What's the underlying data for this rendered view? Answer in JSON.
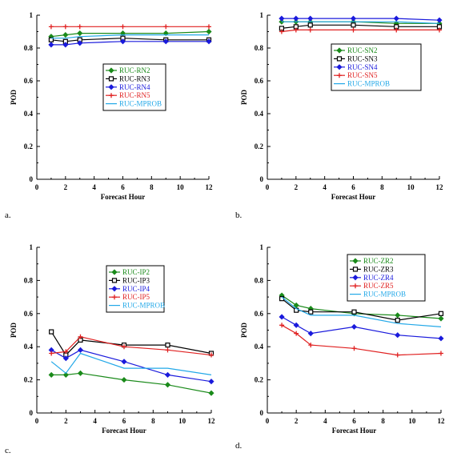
{
  "chart_data": [
    {
      "type": "line",
      "panel_label": "a.",
      "xlabel": "Forecast Hour",
      "ylabel": "POD",
      "xlim": [
        0,
        12
      ],
      "ylim": [
        0,
        1
      ],
      "xticks": [
        0,
        2,
        4,
        6,
        8,
        10,
        12
      ],
      "yticks": [
        0,
        0.2,
        0.4,
        0.6,
        0.8,
        1
      ],
      "ytick_labels": [
        "0",
        "0.2",
        "0.4",
        "0.6",
        "0.8",
        "1"
      ],
      "legend_placement": "center",
      "series": [
        {
          "name": "RUC-RN2",
          "color": "#1a8a1a",
          "marker": "diamond",
          "x": [
            1,
            2,
            3,
            6,
            9,
            12
          ],
          "y": [
            0.87,
            0.88,
            0.89,
            0.89,
            0.89,
            0.9
          ]
        },
        {
          "name": "RUC-RN3",
          "color": "#000000",
          "marker": "square",
          "x": [
            1,
            2,
            3,
            6,
            9,
            12
          ],
          "y": [
            0.85,
            0.84,
            0.85,
            0.86,
            0.85,
            0.85
          ]
        },
        {
          "name": "RUC-RN4",
          "color": "#1a1adc",
          "marker": "diamond",
          "x": [
            1,
            2,
            3,
            6,
            9,
            12
          ],
          "y": [
            0.82,
            0.82,
            0.83,
            0.84,
            0.84,
            0.84
          ]
        },
        {
          "name": "RUC-RN5",
          "color": "#e02020",
          "marker": "cross",
          "x": [
            1,
            2,
            3,
            6,
            9,
            12
          ],
          "y": [
            0.93,
            0.93,
            0.93,
            0.93,
            0.93,
            0.93
          ]
        },
        {
          "name": "RUC-MPROB",
          "color": "#22a8e8",
          "marker": "none",
          "x": [
            1,
            2,
            3,
            6,
            9,
            12
          ],
          "y": [
            0.86,
            0.86,
            0.87,
            0.88,
            0.88,
            0.88
          ]
        }
      ]
    },
    {
      "type": "line",
      "panel_label": "b.",
      "xlabel": "Forecast Hour",
      "ylabel": "POD",
      "xlim": [
        0,
        12
      ],
      "ylim": [
        0,
        1
      ],
      "xticks": [
        0,
        2,
        4,
        6,
        8,
        10,
        12
      ],
      "yticks": [
        0,
        0.2,
        0.4,
        0.6,
        0.8,
        1
      ],
      "ytick_labels": [
        "0",
        "0.2",
        "0.4",
        "0.6",
        "0.8",
        "1"
      ],
      "legend_placement": "center-right",
      "series": [
        {
          "name": "RUC-SN2",
          "color": "#1a8a1a",
          "marker": "diamond",
          "x": [
            1,
            2,
            3,
            6,
            9,
            12
          ],
          "y": [
            0.96,
            0.96,
            0.96,
            0.96,
            0.95,
            0.95
          ]
        },
        {
          "name": "RUC-SN3",
          "color": "#000000",
          "marker": "square",
          "x": [
            1,
            2,
            3,
            6,
            9,
            12
          ],
          "y": [
            0.92,
            0.93,
            0.94,
            0.94,
            0.93,
            0.93
          ]
        },
        {
          "name": "RUC-SN4",
          "color": "#1a1adc",
          "marker": "diamond",
          "x": [
            1,
            2,
            3,
            6,
            9,
            12
          ],
          "y": [
            0.98,
            0.98,
            0.98,
            0.98,
            0.98,
            0.97
          ]
        },
        {
          "name": "RUC-SN5",
          "color": "#e02020",
          "marker": "cross",
          "x": [
            1,
            2,
            3,
            6,
            9,
            12
          ],
          "y": [
            0.9,
            0.91,
            0.91,
            0.91,
            0.91,
            0.91
          ]
        },
        {
          "name": "RUC-MPROB",
          "color": "#22a8e8",
          "marker": "none",
          "x": [
            1,
            2,
            3,
            6,
            9,
            12
          ],
          "y": [
            0.96,
            0.96,
            0.96,
            0.96,
            0.96,
            0.95
          ]
        }
      ]
    },
    {
      "type": "line",
      "panel_label": "c.",
      "xlabel": "Forecast Hour",
      "ylabel": "POD",
      "xlim": [
        0,
        12
      ],
      "ylim": [
        0,
        1
      ],
      "xticks": [
        0,
        2,
        4,
        6,
        8,
        10,
        12
      ],
      "yticks": [
        0,
        0.2,
        0.4,
        0.6,
        0.8,
        1
      ],
      "ytick_labels": [
        "0",
        "0.2",
        "0.4",
        "0.6",
        "0.8",
        "1"
      ],
      "legend_placement": "center",
      "series": [
        {
          "name": "RUC-IP2",
          "color": "#1a8a1a",
          "marker": "diamond",
          "x": [
            1,
            2,
            3,
            6,
            9,
            12
          ],
          "y": [
            0.23,
            0.23,
            0.24,
            0.2,
            0.17,
            0.12
          ]
        },
        {
          "name": "RUC-IP3",
          "color": "#000000",
          "marker": "square",
          "x": [
            1,
            2,
            3,
            6,
            9,
            12
          ],
          "y": [
            0.49,
            0.35,
            0.44,
            0.41,
            0.41,
            0.36
          ]
        },
        {
          "name": "RUC-IP4",
          "color": "#1a1adc",
          "marker": "diamond",
          "x": [
            1,
            2,
            3,
            6,
            9,
            12
          ],
          "y": [
            0.38,
            0.33,
            0.38,
            0.31,
            0.23,
            0.19
          ]
        },
        {
          "name": "RUC-IP5",
          "color": "#e02020",
          "marker": "cross",
          "x": [
            1,
            2,
            3,
            6,
            9,
            12
          ],
          "y": [
            0.36,
            0.37,
            0.46,
            0.4,
            0.38,
            0.35
          ]
        },
        {
          "name": "RUC-MPROB",
          "color": "#22a8e8",
          "marker": "none",
          "x": [
            1,
            2,
            3,
            6,
            9,
            12
          ],
          "y": [
            0.31,
            0.24,
            0.36,
            0.27,
            0.27,
            0.23
          ]
        }
      ]
    },
    {
      "type": "line",
      "panel_label": "d.",
      "xlabel": "Forecast Hour",
      "ylabel": "POD",
      "xlim": [
        0,
        12
      ],
      "ylim": [
        0,
        1
      ],
      "xticks": [
        0,
        2,
        4,
        6,
        8,
        10,
        12
      ],
      "yticks": [
        0,
        0.2,
        0.4,
        0.6,
        0.8,
        1
      ],
      "ytick_labels": [
        "0",
        "0.2",
        "0.4",
        "0.6",
        "0.8",
        "1"
      ],
      "legend_placement": "top-right",
      "series": [
        {
          "name": "RUC-ZR2",
          "color": "#1a8a1a",
          "marker": "diamond",
          "x": [
            1,
            2,
            3,
            6,
            9,
            12
          ],
          "y": [
            0.71,
            0.65,
            0.63,
            0.6,
            0.59,
            0.57
          ]
        },
        {
          "name": "RUC-ZR3",
          "color": "#000000",
          "marker": "square",
          "x": [
            1,
            2,
            3,
            6,
            9,
            12
          ],
          "y": [
            0.69,
            0.62,
            0.61,
            0.61,
            0.56,
            0.6
          ]
        },
        {
          "name": "RUC-ZR4",
          "color": "#1a1adc",
          "marker": "diamond",
          "x": [
            1,
            2,
            3,
            6,
            9,
            12
          ],
          "y": [
            0.58,
            0.53,
            0.48,
            0.52,
            0.47,
            0.45
          ]
        },
        {
          "name": "RUC-ZR5",
          "color": "#e02020",
          "marker": "cross",
          "x": [
            1,
            2,
            3,
            6,
            9,
            12
          ],
          "y": [
            0.53,
            0.48,
            0.41,
            0.39,
            0.35,
            0.36
          ]
        },
        {
          "name": "RUC-MPROB",
          "color": "#22a8e8",
          "marker": "none",
          "x": [
            1,
            2,
            3,
            6,
            9,
            12
          ],
          "y": [
            0.7,
            0.63,
            0.59,
            0.59,
            0.54,
            0.52
          ]
        }
      ]
    }
  ]
}
